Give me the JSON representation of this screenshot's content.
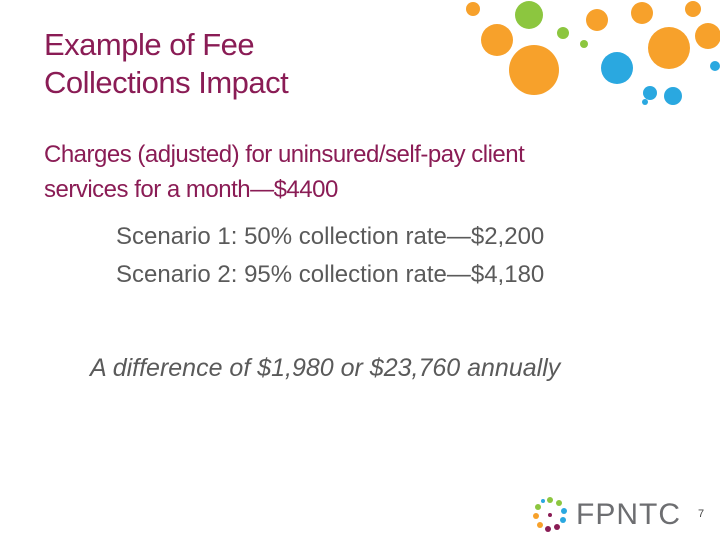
{
  "slide": {
    "title": [
      "Example of Fee",
      "Collections Impact"
    ],
    "subtitle": [
      "Charges (adjusted) for uninsured/self-pay client",
      "services for a month—$4400"
    ],
    "scenarios": [
      "Scenario 1: 50% collection rate—$2,200",
      "Scenario 2: 95% collection rate—$4,180"
    ],
    "difference": "A difference of $1,980 or $23,760 annually",
    "logo": "FPNTC",
    "page_number": "7"
  }
}
